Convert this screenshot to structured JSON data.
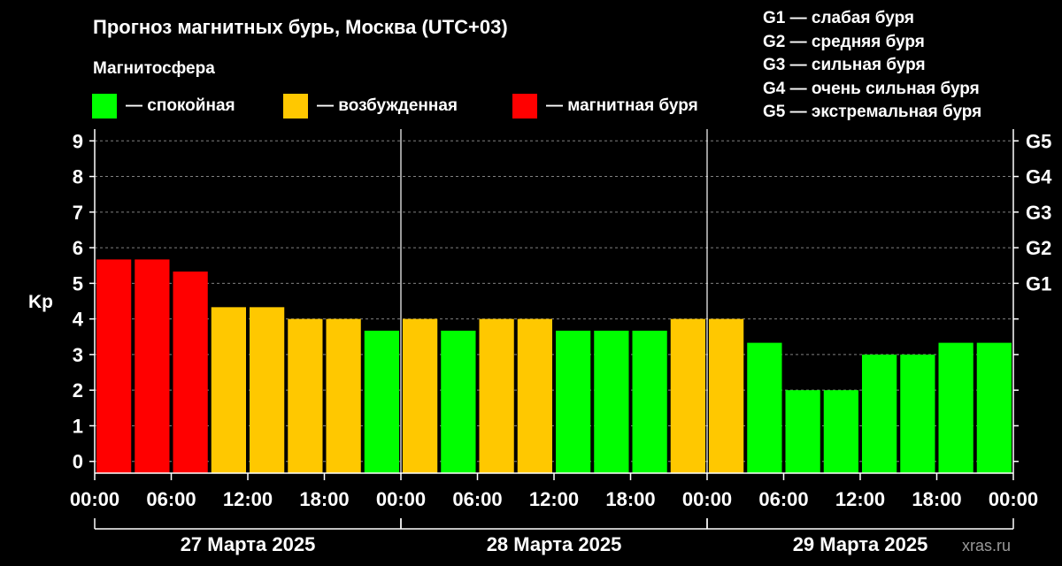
{
  "title": "Прогноз магнитных бурь, Москва (UTC+03)",
  "subtitle": "Магнитосфера",
  "legend": [
    {
      "label": "— спокойная",
      "color": "#00ff00"
    },
    {
      "label": "— возбужденная",
      "color": "#ffc800"
    },
    {
      "label": "— магнитная буря",
      "color": "#ff0000"
    }
  ],
  "g_scale_legend": [
    "G1 — слабая буря",
    "G2 — средняя буря",
    "G3 — сильная буря",
    "G4 — очень сильная буря",
    "G5 — экстремальная буря"
  ],
  "ylabel": "Kp",
  "source": "xras.ru",
  "chart_data": {
    "type": "bar",
    "ylim": [
      -0.33,
      9.33
    ],
    "y_ticks": [
      0,
      1,
      2,
      3,
      4,
      5,
      6,
      7,
      8,
      9
    ],
    "y_tick_labels": [
      "0",
      "1",
      "2",
      "3",
      "4",
      "5",
      "6",
      "7",
      "8",
      "9"
    ],
    "right_axis": {
      "ticks": [
        0,
        1,
        2,
        3,
        4,
        5,
        6,
        7,
        8,
        9
      ],
      "labels": [
        {
          "y": 5,
          "text": "G1"
        },
        {
          "y": 6,
          "text": "G2"
        },
        {
          "y": 7,
          "text": "G3"
        },
        {
          "y": 8,
          "text": "G4"
        },
        {
          "y": 9,
          "text": "G5"
        }
      ]
    },
    "x_tick_labels": [
      "00:00",
      "06:00",
      "12:00",
      "18:00",
      "00:00",
      "06:00",
      "12:00",
      "18:00",
      "00:00",
      "06:00",
      "12:00",
      "18:00",
      "00:00"
    ],
    "days": [
      "27 Марта 2025",
      "28 Марта 2025",
      "29 Марта 2025"
    ],
    "colors": {
      "quiet": "#00ff00",
      "active": "#ffc800",
      "storm": "#ff0000"
    },
    "values": [
      5.67,
      5.67,
      5.33,
      4.33,
      4.33,
      4.0,
      4.0,
      3.67,
      4.0,
      3.67,
      4.0,
      4.0,
      3.67,
      3.67,
      3.67,
      4.0,
      4.0,
      3.33,
      2.0,
      2.0,
      3.0,
      3.0,
      3.33,
      3.33
    ],
    "levels": [
      "storm",
      "storm",
      "storm",
      "active",
      "active",
      "active",
      "active",
      "quiet",
      "active",
      "quiet",
      "active",
      "active",
      "quiet",
      "quiet",
      "quiet",
      "active",
      "active",
      "quiet",
      "quiet",
      "quiet",
      "quiet",
      "quiet",
      "quiet",
      "quiet"
    ]
  }
}
